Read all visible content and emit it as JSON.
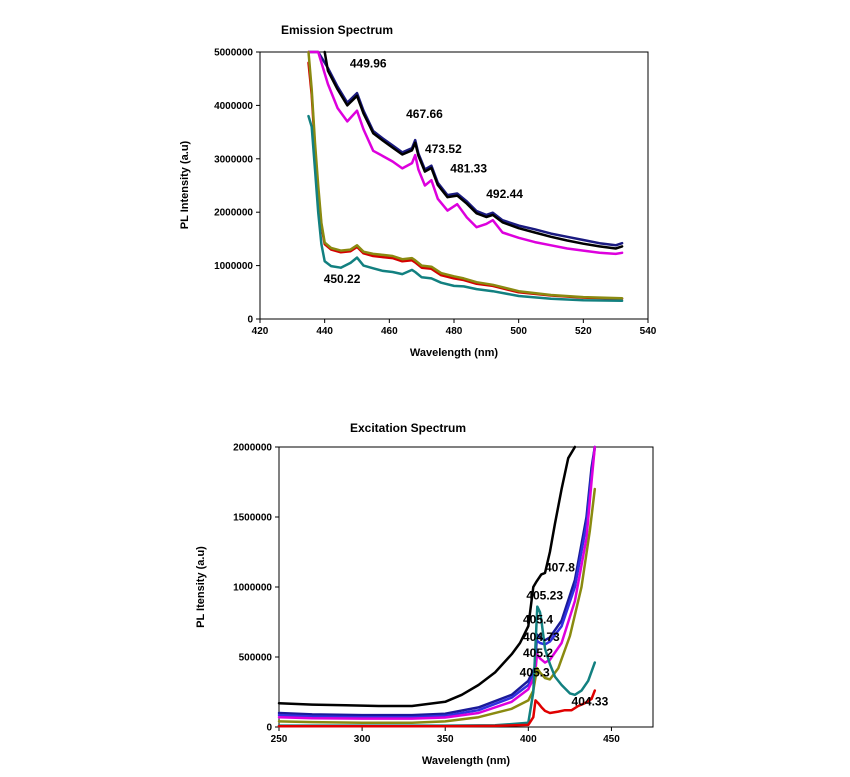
{
  "chart_data": [
    {
      "type": "line",
      "title": "Emission Spectrum",
      "xlabel": "Wavelength (nm)",
      "ylabel": "PL Intensity (a.u)",
      "xlim": [
        420,
        540
      ],
      "ylim": [
        0,
        5000000
      ],
      "xticks": [
        420,
        440,
        460,
        480,
        500,
        520,
        540
      ],
      "yticks": [
        0,
        1000000,
        2000000,
        3000000,
        4000000,
        5000000
      ],
      "x_tick_labels": [
        "420",
        "440",
        "460",
        "480",
        "500",
        "520",
        "540"
      ],
      "y_tick_labels": [
        "0",
        "1000000",
        "2000000",
        "3000000",
        "4000000",
        "5000000"
      ],
      "grid": false,
      "annotations": [
        {
          "text": "449.96",
          "x": 449.96,
          "y": 4450000
        },
        {
          "text": "467.66",
          "x": 467.66,
          "y": 3500000
        },
        {
          "text": "473.52",
          "x": 473.52,
          "y": 2850000
        },
        {
          "text": "481.33",
          "x": 481.33,
          "y": 2480000
        },
        {
          "text": "492.44",
          "x": 492.44,
          "y": 2000000
        },
        {
          "text": "450.22",
          "x": 450.22,
          "y": 820000
        }
      ],
      "series": [
        {
          "color": "#1a1a80",
          "x": [
            435,
            438,
            441,
            444,
            447,
            450,
            452,
            455,
            458,
            461,
            464,
            467,
            468,
            469,
            471,
            473,
            475,
            478,
            481,
            484,
            487,
            490,
            492,
            495,
            500,
            505,
            510,
            515,
            520,
            525,
            530,
            532
          ],
          "y": [
            5950000,
            5200000,
            4700000,
            4350000,
            4050000,
            4230000,
            3900000,
            3520000,
            3380000,
            3250000,
            3120000,
            3200000,
            3350000,
            3100000,
            2800000,
            2870000,
            2550000,
            2320000,
            2350000,
            2200000,
            2020000,
            1950000,
            1990000,
            1850000,
            1750000,
            1680000,
            1600000,
            1540000,
            1480000,
            1420000,
            1380000,
            1420000
          ]
        },
        {
          "color": "#000000",
          "x": [
            440,
            441,
            444,
            447,
            450,
            452,
            455,
            458,
            461,
            464,
            467,
            468,
            469,
            471,
            473,
            475,
            478,
            481,
            484,
            487,
            490,
            492,
            495,
            500,
            505,
            510,
            515,
            520,
            525,
            530,
            532
          ],
          "y": [
            5000000,
            4650000,
            4300000,
            4000000,
            4180000,
            3850000,
            3480000,
            3340000,
            3210000,
            3080000,
            3160000,
            3300000,
            3060000,
            2760000,
            2830000,
            2510000,
            2280000,
            2310000,
            2160000,
            1980000,
            1910000,
            1950000,
            1810000,
            1700000,
            1620000,
            1540000,
            1470000,
            1410000,
            1360000,
            1320000,
            1360000
          ]
        },
        {
          "color": "#dd00dd",
          "x": [
            435,
            438,
            441,
            444,
            447,
            450,
            452,
            455,
            458,
            461,
            464,
            467,
            468,
            469,
            471,
            473,
            475,
            478,
            481,
            484,
            487,
            490,
            492,
            495,
            500,
            505,
            510,
            515,
            520,
            525,
            530,
            532
          ],
          "y": [
            5950000,
            5000000,
            4400000,
            3950000,
            3700000,
            3900000,
            3550000,
            3150000,
            3050000,
            2950000,
            2820000,
            2920000,
            3070000,
            2800000,
            2500000,
            2600000,
            2250000,
            2030000,
            2150000,
            1900000,
            1720000,
            1780000,
            1850000,
            1620000,
            1520000,
            1440000,
            1380000,
            1320000,
            1280000,
            1240000,
            1220000,
            1240000
          ]
        },
        {
          "color": "#d40000",
          "x": [
            435,
            436,
            437,
            438,
            439,
            440,
            442,
            445,
            448,
            450,
            452,
            455,
            458,
            461,
            464,
            467,
            468,
            470,
            473,
            476,
            480,
            483,
            487,
            492,
            500,
            510,
            520,
            532
          ],
          "y": [
            4800000,
            4200000,
            3200000,
            2400000,
            1750000,
            1400000,
            1300000,
            1250000,
            1270000,
            1350000,
            1230000,
            1180000,
            1160000,
            1140000,
            1080000,
            1100000,
            1060000,
            960000,
            940000,
            820000,
            760000,
            730000,
            660000,
            620000,
            500000,
            440000,
            400000,
            380000
          ]
        },
        {
          "color": "#8a8a10",
          "x": [
            435,
            436,
            437,
            438,
            439,
            440,
            442,
            445,
            448,
            450,
            452,
            455,
            458,
            461,
            464,
            467,
            468,
            470,
            473,
            476,
            480,
            483,
            487,
            492,
            500,
            510,
            520,
            532
          ],
          "y": [
            5100000,
            4300000,
            3300000,
            2500000,
            1800000,
            1430000,
            1330000,
            1280000,
            1300000,
            1380000,
            1260000,
            1220000,
            1200000,
            1180000,
            1120000,
            1140000,
            1100000,
            1000000,
            980000,
            860000,
            800000,
            760000,
            690000,
            640000,
            520000,
            450000,
            410000,
            390000
          ]
        },
        {
          "color": "#128080",
          "x": [
            435,
            436,
            437,
            438,
            439,
            440,
            442,
            445,
            448,
            450,
            452,
            455,
            458,
            461,
            464,
            467,
            468,
            470,
            473,
            476,
            480,
            483,
            487,
            492,
            500,
            510,
            520,
            532
          ],
          "y": [
            3800000,
            3600000,
            2800000,
            2000000,
            1400000,
            1080000,
            990000,
            960000,
            1050000,
            1150000,
            1000000,
            950000,
            900000,
            880000,
            840000,
            920000,
            880000,
            780000,
            760000,
            680000,
            620000,
            610000,
            560000,
            520000,
            430000,
            380000,
            350000,
            340000
          ]
        }
      ]
    },
    {
      "type": "line",
      "title": "Excitation Spectrum",
      "xlabel": "Wavelength (nm)",
      "ylabel": "PL Itensity (a.u)",
      "xlim": [
        250,
        475
      ],
      "ylim": [
        0,
        2000000
      ],
      "xticks": [
        250,
        300,
        350,
        400,
        450
      ],
      "yticks": [
        0,
        500000,
        1000000,
        1500000,
        2000000
      ],
      "x_tick_labels": [
        "250",
        "300",
        "350",
        "400",
        "450"
      ],
      "y_tick_labels": [
        "0",
        "500000",
        "1000000",
        "1500000",
        "2000000"
      ],
      "grid": false,
      "annotations": [
        {
          "text": "407.8",
          "x": 410,
          "y": 1110000
        },
        {
          "text": "405.23",
          "x": 400,
          "y": 910000
        },
        {
          "text": "405.4",
          "x": 398,
          "y": 740000
        },
        {
          "text": "404.73",
          "x": 398,
          "y": 615000
        },
        {
          "text": "405.2",
          "x": 398,
          "y": 500000
        },
        {
          "text": "405.3",
          "x": 396,
          "y": 360000
        },
        {
          "text": "404.33",
          "x": 426,
          "y": 155000
        }
      ],
      "series": [
        {
          "color": "#000000",
          "x": [
            250,
            270,
            290,
            310,
            330,
            350,
            360,
            370,
            380,
            390,
            395,
            400,
            403,
            405,
            407.8,
            410,
            413,
            416,
            420,
            424,
            428
          ],
          "y": [
            170000,
            160000,
            155000,
            150000,
            150000,
            180000,
            230000,
            300000,
            390000,
            520000,
            600000,
            720000,
            1000000,
            1040000,
            1090000,
            1100000,
            1250000,
            1450000,
            1700000,
            1920000,
            2080000
          ]
        },
        {
          "color": "#1a1a9a",
          "x": [
            250,
            270,
            300,
            330,
            350,
            370,
            390,
            400,
            404,
            405.23,
            407,
            410,
            413,
            420,
            428,
            435,
            438,
            440
          ],
          "y": [
            100000,
            90000,
            85000,
            85000,
            95000,
            140000,
            230000,
            330000,
            430000,
            660000,
            640000,
            620000,
            640000,
            760000,
            1050000,
            1500000,
            1850000,
            2050000
          ]
        },
        {
          "color": "#3030e0",
          "x": [
            250,
            270,
            300,
            330,
            350,
            370,
            390,
            400,
            404,
            404.73,
            407,
            410,
            413,
            420,
            428,
            435,
            438,
            440
          ],
          "y": [
            85000,
            75000,
            70000,
            70000,
            80000,
            120000,
            210000,
            300000,
            400000,
            620000,
            600000,
            590000,
            610000,
            720000,
            1000000,
            1450000,
            1800000,
            2050000
          ]
        },
        {
          "color": "#dd00dd",
          "x": [
            250,
            270,
            300,
            330,
            350,
            370,
            390,
            400,
            404,
            405.2,
            407,
            410,
            413,
            420,
            428,
            435,
            438,
            440
          ],
          "y": [
            70000,
            62000,
            60000,
            60000,
            68000,
            100000,
            180000,
            270000,
            370000,
            520000,
            490000,
            460000,
            480000,
            600000,
            900000,
            1350000,
            1750000,
            2050000
          ]
        },
        {
          "color": "#8a8a10",
          "x": [
            250,
            270,
            300,
            330,
            350,
            370,
            390,
            400,
            403,
            405.3,
            407,
            410,
            413,
            418,
            425,
            432,
            437,
            440
          ],
          "y": [
            40000,
            35000,
            30000,
            30000,
            40000,
            70000,
            130000,
            190000,
            260000,
            420000,
            390000,
            350000,
            340000,
            420000,
            650000,
            1000000,
            1400000,
            1700000
          ]
        },
        {
          "color": "#128080",
          "x": [
            250,
            300,
            350,
            380,
            400,
            403,
            405.4,
            407,
            408,
            410,
            413,
            416,
            420,
            425,
            428,
            432,
            436,
            440
          ],
          "y": [
            10000,
            10000,
            10000,
            12000,
            30000,
            250000,
            860000,
            820000,
            750000,
            560000,
            450000,
            360000,
            300000,
            240000,
            230000,
            260000,
            330000,
            460000
          ]
        },
        {
          "color": "#e00000",
          "x": [
            250,
            300,
            350,
            380,
            400,
            403,
            404.33,
            406,
            408,
            410,
            413,
            418,
            422,
            426,
            430,
            434,
            438,
            440
          ],
          "y": [
            5000,
            5000,
            5000,
            8000,
            15000,
            70000,
            190000,
            170000,
            140000,
            115000,
            100000,
            110000,
            120000,
            120000,
            150000,
            170000,
            200000,
            260000
          ]
        }
      ]
    }
  ]
}
